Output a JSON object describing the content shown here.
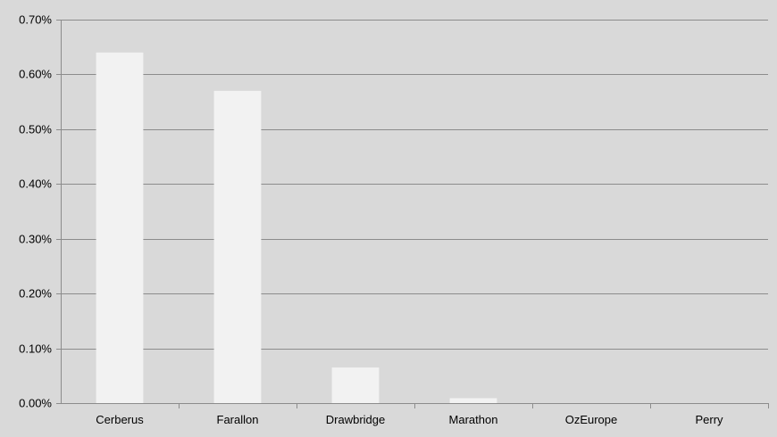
{
  "chart_data": {
    "type": "bar",
    "categories": [
      "Cerberus",
      "Farallon",
      "Drawbridge",
      "Marathon",
      "OzEurope",
      "Perry"
    ],
    "values": [
      0.64,
      0.57,
      0.065,
      0.009,
      0.0,
      0.0
    ],
    "value_unit": "%",
    "y_ticks": [
      "0.00%",
      "0.10%",
      "0.20%",
      "0.30%",
      "0.40%",
      "0.50%",
      "0.60%",
      "0.70%"
    ],
    "ylim": [
      0,
      0.7
    ],
    "grid": true,
    "legend": "none",
    "colors": {
      "background": "#d9d9d9",
      "bar": "#f2f2f2",
      "gridline": "#8c8c8c",
      "axis": "#8c8c8c",
      "text": "#000000"
    }
  }
}
